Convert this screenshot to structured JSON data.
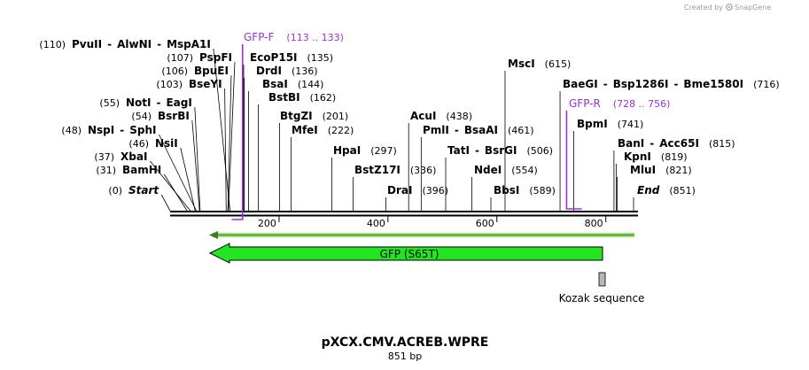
{
  "credit": {
    "text": "Created by",
    "brand": "SnapGene"
  },
  "map": {
    "name": "pXCX.CMV.ACREB.WPRE",
    "length_label": "851 bp",
    "ticks": [
      "200",
      "400",
      "600",
      "800"
    ],
    "colors": {
      "feature": "#22e622",
      "primer": "#9b30d9",
      "kozak": "#b8b8b8"
    }
  },
  "enzymes": [
    {
      "pos": "(110)",
      "names": [
        "PvuII",
        "AlwNI",
        "MspA1I"
      ]
    },
    {
      "pos": "(107)",
      "names": [
        "PspFI"
      ]
    },
    {
      "pos": "(106)",
      "names": [
        "BpuEI"
      ]
    },
    {
      "pos": "(103)",
      "names": [
        "BseYI"
      ]
    },
    {
      "pos": "(55)",
      "names": [
        "NotI",
        "EagI"
      ]
    },
    {
      "pos": "(54)",
      "names": [
        "BsrBI"
      ]
    },
    {
      "pos": "(48)",
      "names": [
        "NspI",
        "SphI"
      ]
    },
    {
      "pos": "(46)",
      "names": [
        "NsiI"
      ]
    },
    {
      "pos": "(37)",
      "names": [
        "XbaI"
      ]
    },
    {
      "pos": "(31)",
      "names": [
        "BamHI"
      ]
    },
    {
      "pos": "(0)",
      "names": [
        "Start"
      ]
    },
    {
      "pos": "(135)",
      "names": [
        "EcoP15I"
      ]
    },
    {
      "pos": "(136)",
      "names": [
        "DrdI"
      ]
    },
    {
      "pos": "(144)",
      "names": [
        "BsaI"
      ]
    },
    {
      "pos": "(162)",
      "names": [
        "BstBI"
      ]
    },
    {
      "pos": "(201)",
      "names": [
        "BtgZI"
      ]
    },
    {
      "pos": "(222)",
      "names": [
        "MfeI"
      ]
    },
    {
      "pos": "(297)",
      "names": [
        "HpaI"
      ]
    },
    {
      "pos": "(336)",
      "names": [
        "BstZ17I"
      ]
    },
    {
      "pos": "(396)",
      "names": [
        "DraI"
      ]
    },
    {
      "pos": "(438)",
      "names": [
        "AcuI"
      ]
    },
    {
      "pos": "(461)",
      "names": [
        "PmlI",
        "BsaAI"
      ]
    },
    {
      "pos": "(506)",
      "names": [
        "TatI",
        "BsrGI"
      ]
    },
    {
      "pos": "(554)",
      "names": [
        "NdeI"
      ]
    },
    {
      "pos": "(589)",
      "names": [
        "BbsI"
      ]
    },
    {
      "pos": "(615)",
      "names": [
        "MscI"
      ]
    },
    {
      "pos": "(716)",
      "names": [
        "BaeGI",
        "Bsp1286I",
        "Bme1580I"
      ]
    },
    {
      "pos": "(741)",
      "names": [
        "BpmI"
      ]
    },
    {
      "pos": "(815)",
      "names": [
        "BanI",
        "Acc65I"
      ]
    },
    {
      "pos": "(819)",
      "names": [
        "KpnI"
      ]
    },
    {
      "pos": "(821)",
      "names": [
        "MluI"
      ]
    },
    {
      "pos": "(851)",
      "names": [
        "End"
      ]
    }
  ],
  "primers": [
    {
      "name": "GFP-F",
      "range": "(113 .. 133)"
    },
    {
      "name": "GFP-R",
      "range": "(728 .. 756)"
    }
  ],
  "features": [
    {
      "name": "GFP (S65T)",
      "color": "#22e622"
    },
    {
      "name": "Kozak sequence",
      "color": "#b8b8b8"
    }
  ]
}
